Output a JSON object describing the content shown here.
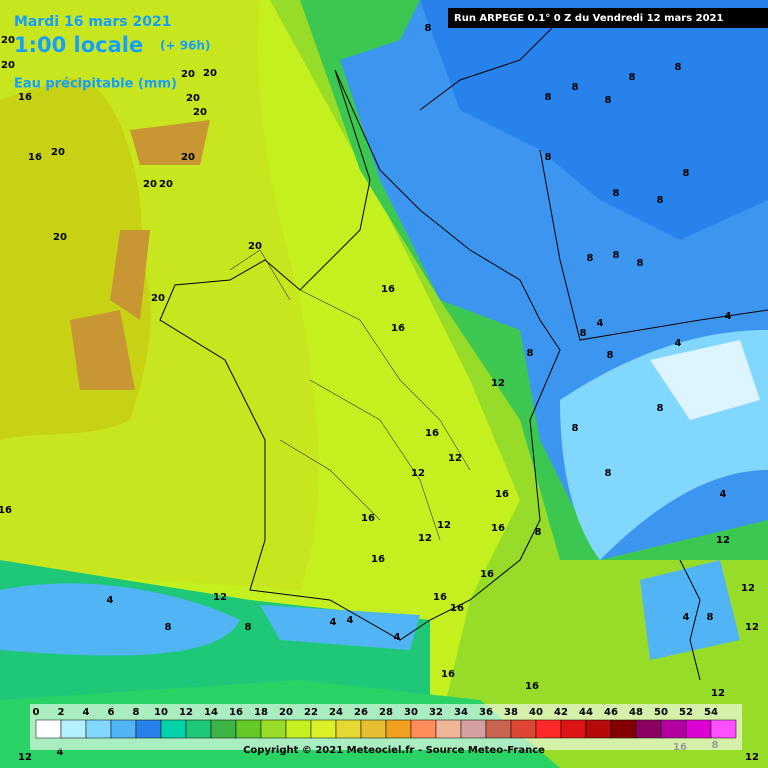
{
  "header": {
    "date": "Mardi 16 mars 2021",
    "time": "1:00 locale",
    "lead": "(+ 96h)",
    "field": "Eau précipitable (mm)",
    "run": "Run ARPEGE 0.1° 0 Z du Vendredi 12 mars 2021"
  },
  "contour_labels": [
    16,
    20,
    20,
    20,
    20,
    20,
    20,
    20,
    20,
    16,
    20,
    20,
    20,
    20,
    20,
    16,
    16,
    12,
    16,
    12,
    12,
    16,
    16,
    12,
    12,
    16,
    16,
    16,
    16,
    16,
    12,
    4,
    4,
    4,
    4,
    16,
    16,
    12,
    8,
    8,
    8,
    8,
    8,
    8,
    8,
    8,
    8,
    4,
    4,
    8,
    8,
    4,
    8,
    8,
    8,
    4,
    8,
    4,
    8,
    12,
    12,
    8,
    8,
    4,
    8,
    12,
    16,
    8,
    12,
    16,
    12,
    8,
    8,
    8,
    8,
    8
  ],
  "legend": {
    "ticks": [
      0,
      2,
      4,
      6,
      8,
      10,
      12,
      14,
      16,
      18,
      20,
      22,
      24,
      26,
      28,
      30,
      32,
      34,
      36,
      38,
      40,
      42,
      44,
      46,
      48,
      50,
      52,
      54
    ],
    "colors": [
      "#ffffff",
      "#b4f0ff",
      "#82d7ff",
      "#50b4f5",
      "#2882eb",
      "#00d2aa",
      "#1ec878",
      "#3cb446",
      "#64c828",
      "#96dc28",
      "#c3f01e",
      "#dcf028",
      "#e6d732",
      "#e6be32",
      "#f0a01e",
      "#ff8c5a",
      "#f0b496",
      "#d2a0a0",
      "#c86450",
      "#dc4632",
      "#ff2828",
      "#dc1414",
      "#b40a0a",
      "#820000",
      "#8c0064",
      "#b400a0",
      "#dc00d2",
      "#ff50ff"
    ]
  },
  "footer": {
    "copyright": "Copyright © 2021 Meteociel.fr - Source Meteo-France"
  }
}
